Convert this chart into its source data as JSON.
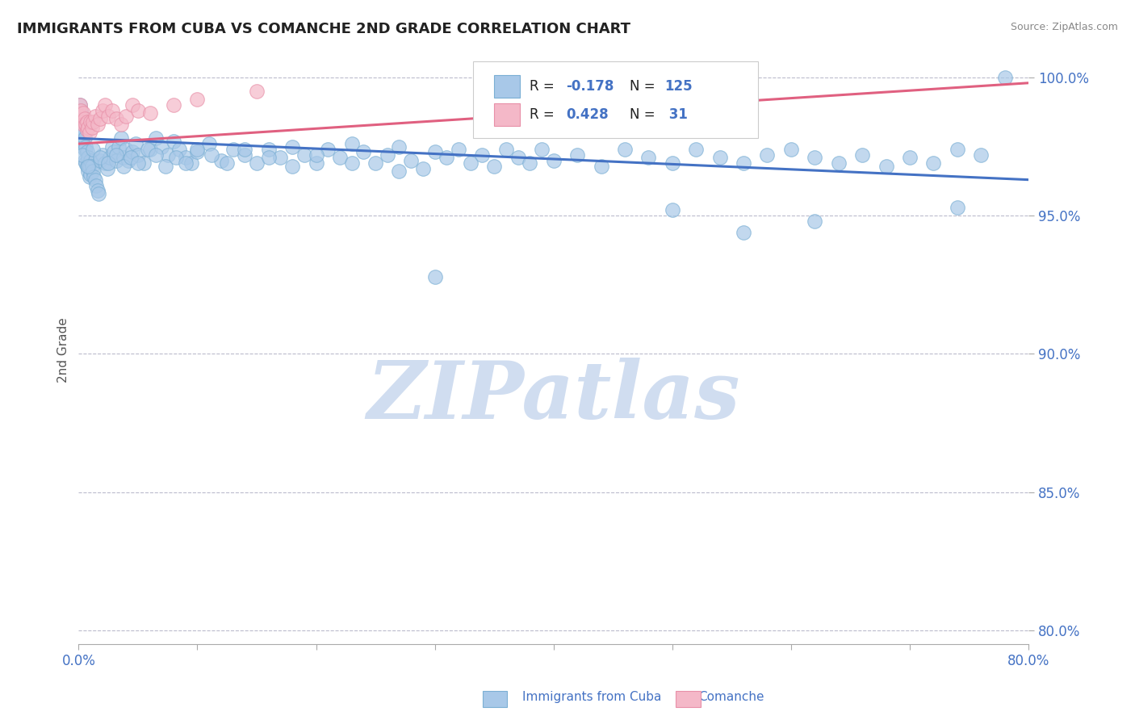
{
  "title": "IMMIGRANTS FROM CUBA VS COMANCHE 2ND GRADE CORRELATION CHART",
  "source": "Source: ZipAtlas.com",
  "ylabel": "2nd Grade",
  "R_blue": -0.178,
  "N_blue": 125,
  "R_pink": 0.428,
  "N_pink": 31,
  "xmin": 0.0,
  "xmax": 0.8,
  "ymin": 0.795,
  "ymax": 1.008,
  "yticks": [
    0.8,
    0.85,
    0.9,
    0.95,
    1.0
  ],
  "ytick_labels": [
    "80.0%",
    "85.0%",
    "90.0%",
    "95.0%",
    "100.0%"
  ],
  "xticks": [
    0.0,
    0.1,
    0.2,
    0.3,
    0.4,
    0.5,
    0.6,
    0.7,
    0.8
  ],
  "xtick_labels": [
    "0.0%",
    "",
    "",
    "",
    "",
    "",
    "",
    "",
    "80.0%"
  ],
  "blue_color": "#a8c8e8",
  "blue_edge_color": "#7bafd4",
  "pink_color": "#f4b8c8",
  "pink_edge_color": "#e890a8",
  "blue_line_color": "#4472c4",
  "pink_line_color": "#e06080",
  "watermark_color": "#d0ddf0",
  "legend_labels": [
    "Immigrants from Cuba",
    "Comanche"
  ],
  "blue_scatter_x": [
    0.001,
    0.001,
    0.002,
    0.002,
    0.003,
    0.003,
    0.003,
    0.004,
    0.004,
    0.005,
    0.005,
    0.005,
    0.006,
    0.006,
    0.007,
    0.007,
    0.008,
    0.008,
    0.009,
    0.009,
    0.01,
    0.01,
    0.011,
    0.012,
    0.013,
    0.014,
    0.015,
    0.016,
    0.017,
    0.018,
    0.02,
    0.022,
    0.024,
    0.026,
    0.028,
    0.03,
    0.032,
    0.034,
    0.036,
    0.038,
    0.04,
    0.042,
    0.045,
    0.048,
    0.05,
    0.055,
    0.06,
    0.065,
    0.07,
    0.075,
    0.08,
    0.085,
    0.09,
    0.095,
    0.1,
    0.11,
    0.12,
    0.13,
    0.14,
    0.15,
    0.16,
    0.17,
    0.18,
    0.19,
    0.2,
    0.21,
    0.22,
    0.23,
    0.24,
    0.25,
    0.26,
    0.27,
    0.28,
    0.29,
    0.3,
    0.31,
    0.32,
    0.33,
    0.34,
    0.35,
    0.36,
    0.37,
    0.38,
    0.39,
    0.4,
    0.42,
    0.44,
    0.46,
    0.48,
    0.5,
    0.52,
    0.54,
    0.56,
    0.58,
    0.6,
    0.62,
    0.64,
    0.66,
    0.68,
    0.7,
    0.72,
    0.74,
    0.76,
    0.003,
    0.008,
    0.012,
    0.018,
    0.025,
    0.032,
    0.038,
    0.044,
    0.05,
    0.058,
    0.065,
    0.073,
    0.082,
    0.09,
    0.1,
    0.112,
    0.125,
    0.14,
    0.16,
    0.18,
    0.2,
    0.23,
    0.27
  ],
  "blue_scatter_y": [
    0.99,
    0.984,
    0.988,
    0.982,
    0.986,
    0.981,
    0.977,
    0.98,
    0.975,
    0.978,
    0.974,
    0.97,
    0.975,
    0.969,
    0.973,
    0.968,
    0.971,
    0.966,
    0.968,
    0.964,
    0.97,
    0.965,
    0.968,
    0.966,
    0.964,
    0.963,
    0.961,
    0.959,
    0.958,
    0.97,
    0.972,
    0.969,
    0.967,
    0.971,
    0.975,
    0.973,
    0.97,
    0.975,
    0.978,
    0.971,
    0.974,
    0.97,
    0.973,
    0.976,
    0.972,
    0.969,
    0.974,
    0.978,
    0.975,
    0.972,
    0.977,
    0.974,
    0.971,
    0.969,
    0.973,
    0.976,
    0.97,
    0.974,
    0.972,
    0.969,
    0.974,
    0.971,
    0.975,
    0.972,
    0.969,
    0.974,
    0.971,
    0.976,
    0.973,
    0.969,
    0.972,
    0.975,
    0.97,
    0.967,
    0.973,
    0.971,
    0.974,
    0.969,
    0.972,
    0.968,
    0.974,
    0.971,
    0.969,
    0.974,
    0.97,
    0.972,
    0.968,
    0.974,
    0.971,
    0.969,
    0.974,
    0.971,
    0.969,
    0.972,
    0.974,
    0.971,
    0.969,
    0.972,
    0.968,
    0.971,
    0.969,
    0.974,
    0.972,
    0.972,
    0.968,
    0.974,
    0.971,
    0.969,
    0.972,
    0.968,
    0.971,
    0.969,
    0.974,
    0.972,
    0.968,
    0.971,
    0.969,
    0.974,
    0.972,
    0.969,
    0.974,
    0.971,
    0.968,
    0.972,
    0.969,
    0.966
  ],
  "blue_outliers_x": [
    0.74,
    0.62,
    0.3,
    0.56,
    0.5,
    0.78
  ],
  "blue_outliers_y": [
    0.953,
    0.948,
    0.928,
    0.944,
    0.952,
    1.0
  ],
  "pink_scatter_x": [
    0.001,
    0.002,
    0.002,
    0.003,
    0.004,
    0.004,
    0.005,
    0.006,
    0.007,
    0.007,
    0.008,
    0.009,
    0.01,
    0.011,
    0.012,
    0.014,
    0.016,
    0.018,
    0.02,
    0.022,
    0.025,
    0.028,
    0.032,
    0.036,
    0.04,
    0.045,
    0.05,
    0.06,
    0.08,
    0.1,
    0.15
  ],
  "pink_scatter_y": [
    0.99,
    0.986,
    0.988,
    0.984,
    0.987,
    0.983,
    0.985,
    0.983,
    0.981,
    0.984,
    0.982,
    0.98,
    0.984,
    0.982,
    0.984,
    0.986,
    0.983,
    0.985,
    0.988,
    0.99,
    0.986,
    0.988,
    0.985,
    0.983,
    0.986,
    0.99,
    0.988,
    0.987,
    0.99,
    0.992,
    0.995
  ],
  "blue_trend_x0": 0.0,
  "blue_trend_x1": 0.8,
  "blue_trend_y0": 0.978,
  "blue_trend_y1": 0.963,
  "pink_trend_x0": 0.0,
  "pink_trend_x1": 0.8,
  "pink_trend_y0": 0.976,
  "pink_trend_y1": 0.998
}
